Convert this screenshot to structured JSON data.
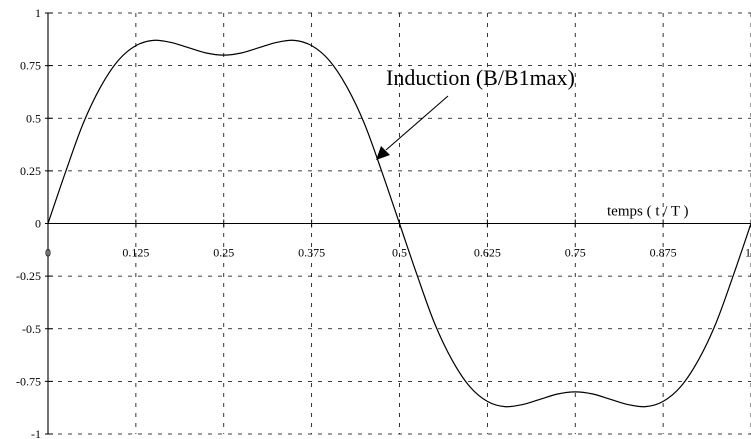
{
  "chart_data": {
    "type": "line",
    "title": "",
    "xlabel": "temps ( t / T )",
    "ylabel": "",
    "xlim": [
      0,
      1
    ],
    "ylim": [
      -1,
      1
    ],
    "grid": true,
    "x_ticks": [
      "0",
      "0.125",
      "0.25",
      "0.375",
      "0.5",
      "0.625",
      "0.75",
      "0.875",
      "1"
    ],
    "y_ticks": [
      "1",
      "0.75",
      "0.5",
      "0.25",
      "0",
      "-0.25",
      "-0.5",
      "-0.75",
      "-1"
    ],
    "annotation": "Induction  (B/B1max)",
    "series": [
      {
        "name": "",
        "x": [
          0,
          0.025,
          0.05,
          0.075,
          0.1,
          0.125,
          0.15,
          0.175,
          0.2,
          0.225,
          0.25,
          0.275,
          0.3,
          0.325,
          0.35,
          0.375,
          0.4,
          0.425,
          0.45,
          0.475,
          0.5,
          0.525,
          0.55,
          0.575,
          0.6,
          0.625,
          0.65,
          0.675,
          0.7,
          0.725,
          0.75,
          0.775,
          0.8,
          0.825,
          0.85,
          0.875,
          0.9,
          0.925,
          0.95,
          0.975,
          1
        ],
        "values": [
          0,
          0.245,
          0.475,
          0.65,
          0.775,
          0.845,
          0.87,
          0.86,
          0.835,
          0.81,
          0.8,
          0.81,
          0.835,
          0.86,
          0.87,
          0.845,
          0.775,
          0.65,
          0.475,
          0.245,
          0,
          -0.245,
          -0.475,
          -0.65,
          -0.775,
          -0.845,
          -0.87,
          -0.86,
          -0.835,
          -0.81,
          -0.8,
          -0.81,
          -0.835,
          -0.86,
          -0.87,
          -0.845,
          -0.775,
          -0.65,
          -0.475,
          -0.245,
          0
        ]
      }
    ]
  }
}
